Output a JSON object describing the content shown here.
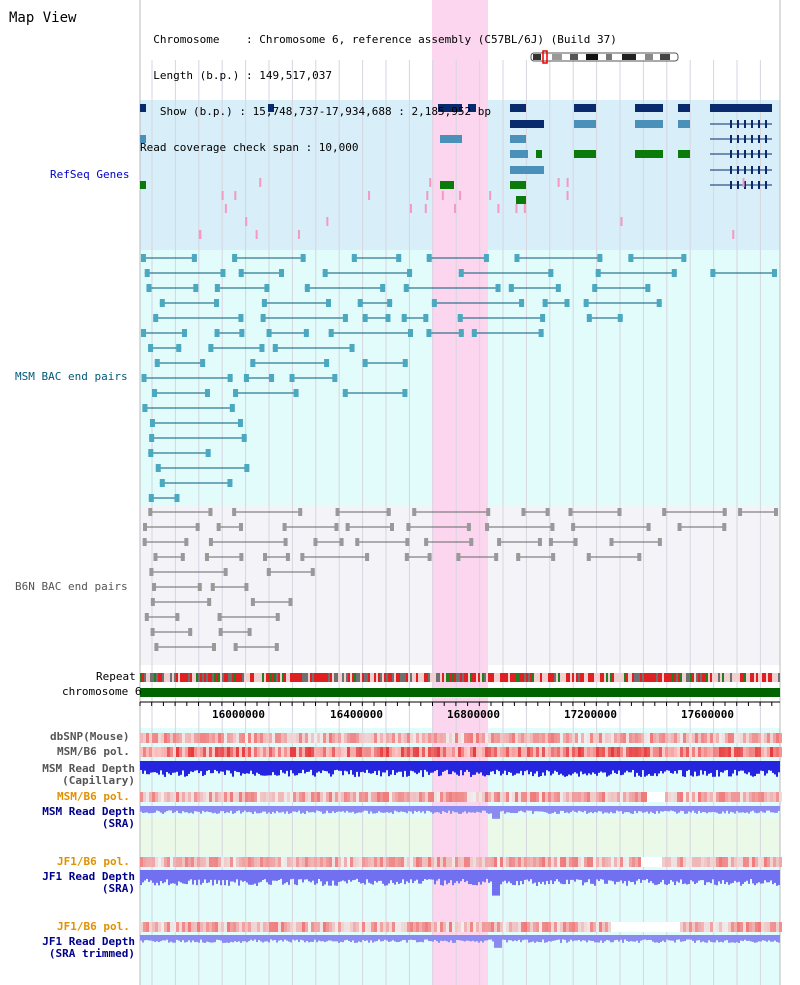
{
  "page_title": "Map View",
  "info_lines": [
    "  Chromosome    : Chromosome 6, reference assembly (C57BL/6J) (Build 37)",
    "  Length (b.p.) : 149,517,037",
    "   Show (b.p.) : 15,748,737-17,934,688 : 2,185,952 bp",
    "Read coverage check span : 10,000"
  ],
  "tracks": {
    "refseq": "RefSeq Genes",
    "msm_bac": "MSM BAC end pairs",
    "b6n_bac": "B6N BAC end pairs",
    "repeat": "Repeat",
    "chromosome": "chromosome 6",
    "dbsnp": "dbSNP(Mouse)",
    "msm_b6_pol_1": "MSM/B6 pol.",
    "msm_depth_cap": "MSM Read Depth\n(Capillary)",
    "msm_b6_pol_2": "MSM/B6 pol.",
    "msm_depth_sra": "MSM Read Depth\n(SRA)",
    "jf1_b6_pol_1": "JF1/B6 pol.",
    "jf1_depth_sra": "JF1 Read Depth\n(SRA)",
    "jf1_b6_pol_2": "JF1/B6 pol.",
    "jf1_depth_trim": "JF1 Read Depth\n(SRA trimmed)"
  },
  "axis_ticks": [
    "16000000",
    "16400000",
    "16800000",
    "17200000",
    "17600000"
  ],
  "colors": {
    "refseq_bg": "#d8eef8",
    "bac_bg": "#e2fbfb",
    "highlight": "#fbd6ee",
    "refseq_label": "#0000cc",
    "msm_label": "#005a78",
    "b6n_label": "#555555",
    "sra_label": "#00008b",
    "pol_label_orange": "#e09000",
    "chromosome_bar": "#006400",
    "dark_gene": "#0a2a6e",
    "mid_gene": "#4a90b8",
    "green_gene": "#0a7a0a"
  }
}
